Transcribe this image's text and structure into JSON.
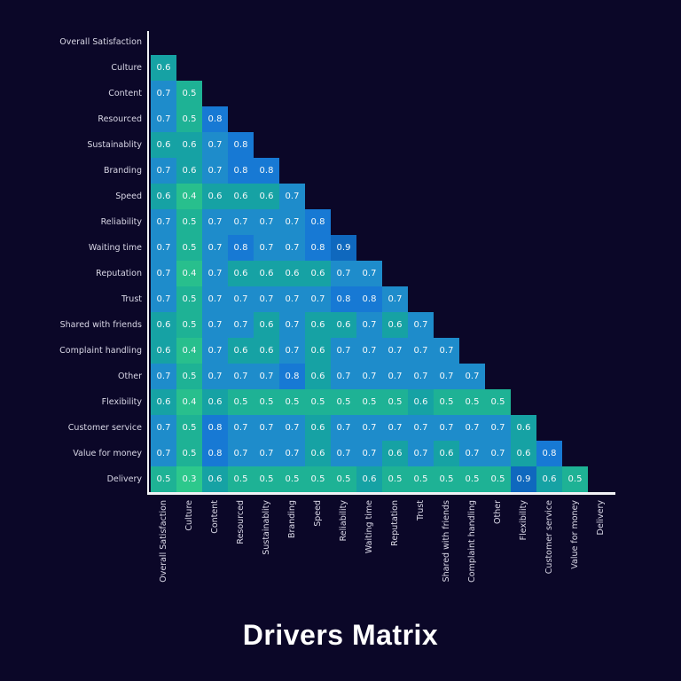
{
  "page": {
    "background": "#0b0728"
  },
  "title": {
    "text": "Drivers Matrix",
    "color": "#ffffff"
  },
  "chart_data": {
    "type": "heatmap",
    "title": "Drivers Matrix",
    "shape": "lower-triangular-correlation-matrix",
    "grid": false,
    "legend": false,
    "value_range": [
      0.3,
      0.9
    ],
    "categories": [
      "Overall Satisfaction",
      "Culture",
      "Content",
      "Resourced",
      "Sustainablity",
      "Branding",
      "Speed",
      "Reliability",
      "Waiting time",
      "Reputation",
      "Trust",
      "Shared with friends",
      "Complaint handling",
      "Other",
      "Flexibility",
      "Customer service",
      "Value for money",
      "Delivery"
    ],
    "matrix": [
      [],
      [
        0.6
      ],
      [
        0.7,
        0.5
      ],
      [
        0.7,
        0.5,
        0.8
      ],
      [
        0.6,
        0.6,
        0.7,
        0.8
      ],
      [
        0.7,
        0.6,
        0.7,
        0.8,
        0.8
      ],
      [
        0.6,
        0.4,
        0.6,
        0.6,
        0.6,
        0.7
      ],
      [
        0.7,
        0.5,
        0.7,
        0.7,
        0.7,
        0.7,
        0.8
      ],
      [
        0.7,
        0.5,
        0.7,
        0.8,
        0.7,
        0.7,
        0.8,
        0.9
      ],
      [
        0.7,
        0.4,
        0.7,
        0.6,
        0.6,
        0.6,
        0.6,
        0.7,
        0.7
      ],
      [
        0.7,
        0.5,
        0.7,
        0.7,
        0.7,
        0.7,
        0.7,
        0.8,
        0.8,
        0.7
      ],
      [
        0.6,
        0.5,
        0.7,
        0.7,
        0.6,
        0.7,
        0.6,
        0.6,
        0.7,
        0.6,
        0.7
      ],
      [
        0.6,
        0.4,
        0.7,
        0.6,
        0.6,
        0.7,
        0.6,
        0.7,
        0.7,
        0.7,
        0.7,
        0.7
      ],
      [
        0.7,
        0.5,
        0.7,
        0.7,
        0.7,
        0.8,
        0.6,
        0.7,
        0.7,
        0.7,
        0.7,
        0.7,
        0.7
      ],
      [
        0.6,
        0.4,
        0.6,
        0.5,
        0.5,
        0.5,
        0.5,
        0.5,
        0.5,
        0.5,
        0.6,
        0.5,
        0.5,
        0.5
      ],
      [
        0.7,
        0.5,
        0.8,
        0.7,
        0.7,
        0.7,
        0.6,
        0.7,
        0.7,
        0.7,
        0.7,
        0.7,
        0.7,
        0.7,
        0.6
      ],
      [
        0.7,
        0.5,
        0.8,
        0.7,
        0.7,
        0.7,
        0.6,
        0.7,
        0.7,
        0.6,
        0.7,
        0.6,
        0.7,
        0.7,
        0.6,
        0.8
      ],
      [
        0.5,
        0.3,
        0.6,
        0.5,
        0.5,
        0.5,
        0.5,
        0.5,
        0.6,
        0.5,
        0.5,
        0.5,
        0.5,
        0.5,
        0.9,
        0.6,
        0.5
      ]
    ],
    "value_colors": {
      "0.3": "#2dc88c",
      "0.4": "#28bf8d",
      "0.5": "#1eb295",
      "0.6": "#16a2a4",
      "0.7": "#1e8ccb",
      "0.8": "#1779d4",
      "0.9": "#0f68be"
    },
    "axis_color": "#f2f2f6",
    "tick_label_color": "#d9d7e6",
    "cell_text_color": "#f3f8f9"
  }
}
